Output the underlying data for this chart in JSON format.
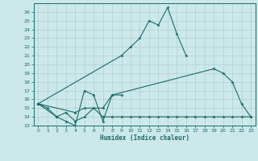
{
  "xlabel": "Humidex (Indice chaleur)",
  "bg_color": "#cce8e8",
  "grid_color": "#aacccc",
  "line_color": "#1a6b6b",
  "xlim": [
    -0.5,
    23.5
  ],
  "ylim": [
    13,
    27
  ],
  "yticks": [
    13,
    14,
    15,
    16,
    17,
    18,
    19,
    20,
    21,
    22,
    23,
    24,
    25,
    26
  ],
  "xticks": [
    0,
    1,
    2,
    3,
    4,
    5,
    6,
    7,
    8,
    9,
    10,
    11,
    12,
    13,
    14,
    15,
    16,
    17,
    18,
    19,
    20,
    21,
    22,
    23
  ],
  "series": [
    {
      "x": [
        0,
        1,
        2,
        3,
        4,
        5,
        6,
        7,
        8,
        9
      ],
      "y": [
        15.5,
        15.0,
        14.0,
        13.5,
        13.0,
        17.0,
        16.5,
        13.5,
        16.5,
        16.5
      ]
    },
    {
      "x": [
        0,
        4,
        5,
        7,
        8,
        19,
        20,
        21,
        22,
        23
      ],
      "y": [
        15.5,
        14.5,
        15.0,
        15.0,
        16.5,
        19.5,
        19.0,
        18.0,
        15.5,
        14.0
      ]
    },
    {
      "x": [
        0,
        9,
        10,
        11,
        12,
        13,
        14,
        15,
        16
      ],
      "y": [
        15.5,
        21.0,
        22.0,
        23.0,
        25.0,
        24.5,
        26.5,
        23.5,
        21.0
      ]
    },
    {
      "x": [
        0,
        2,
        3,
        4,
        5,
        6,
        7,
        8,
        9,
        10,
        11,
        12,
        13,
        14,
        15,
        16,
        17,
        18,
        19,
        20,
        21,
        22,
        23
      ],
      "y": [
        15.5,
        14.0,
        14.5,
        13.5,
        14.0,
        15.0,
        14.0,
        14.0,
        14.0,
        14.0,
        14.0,
        14.0,
        14.0,
        14.0,
        14.0,
        14.0,
        14.0,
        14.0,
        14.0,
        14.0,
        14.0,
        14.0,
        14.0
      ]
    }
  ]
}
